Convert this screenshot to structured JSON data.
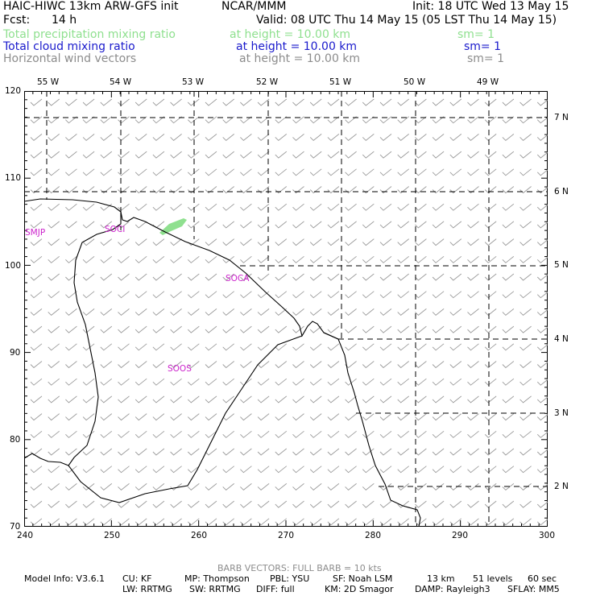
{
  "header": {
    "model_title": "HAIC-HIWC 13km ARW-GFS init",
    "org": "NCAR/MMM",
    "init": "Init: 18 UTC Wed 13 May 15",
    "fcst_label": "Fcst:",
    "fcst_value": "14 h",
    "valid": "Valid: 08 UTC Thu 14 May 15 (05 LST Thu 14 May 15)"
  },
  "fields": [
    {
      "name": "Total precipitation mixing ratio",
      "height": "at height = 10.00 km",
      "sm": "sm= 1",
      "color": "#8fe08f"
    },
    {
      "name": "Total cloud mixing ratio",
      "height": "at height = 10.00 km",
      "sm": "sm= 1",
      "color": "#1a1acc"
    },
    {
      "name": "Horizontal wind vectors",
      "height": "at height = 10.00 km",
      "sm": "sm= 1",
      "color": "#8c8c8c"
    }
  ],
  "map": {
    "lon_labels": [
      "55 W",
      "54 W",
      "53 W",
      "52 W",
      "51 W",
      "50 W",
      "49 W"
    ],
    "lat_labels": [
      "7 N",
      "6 N",
      "5 N",
      "4 N",
      "3 N",
      "2 N"
    ],
    "x_ticks": [
      "240",
      "250",
      "260",
      "270",
      "280",
      "290",
      "300"
    ],
    "y_ticks": [
      "120",
      "110",
      "100",
      "90",
      "80",
      "70"
    ],
    "stations": [
      "SMJP",
      "SOCI",
      "SOCA",
      "SOOS"
    ],
    "colors": {
      "coast": "#000000",
      "barb": "#9a9a9a",
      "grid": "#000000",
      "precip": "#8fe08f",
      "station": "#cc22cc"
    }
  },
  "footer": {
    "barb_note": "BARB VECTORS:  FULL BARB = 10 kts",
    "model_info": "Model Info: V3.6.1",
    "cu": "CU: KF",
    "mp": "MP: Thompson",
    "pbl": "PBL: YSU",
    "sf": "SF: Noah LSM",
    "res": "13 km",
    "levels": "51 levels",
    "dt": "60 sec",
    "lw": "LW: RRTMG",
    "sw": "SW: RRTMG",
    "diff": "DIFF: full",
    "km": "KM: 2D Smagor",
    "damp": "DAMP: Rayleigh3",
    "sflay": "SFLAY: MM5"
  }
}
